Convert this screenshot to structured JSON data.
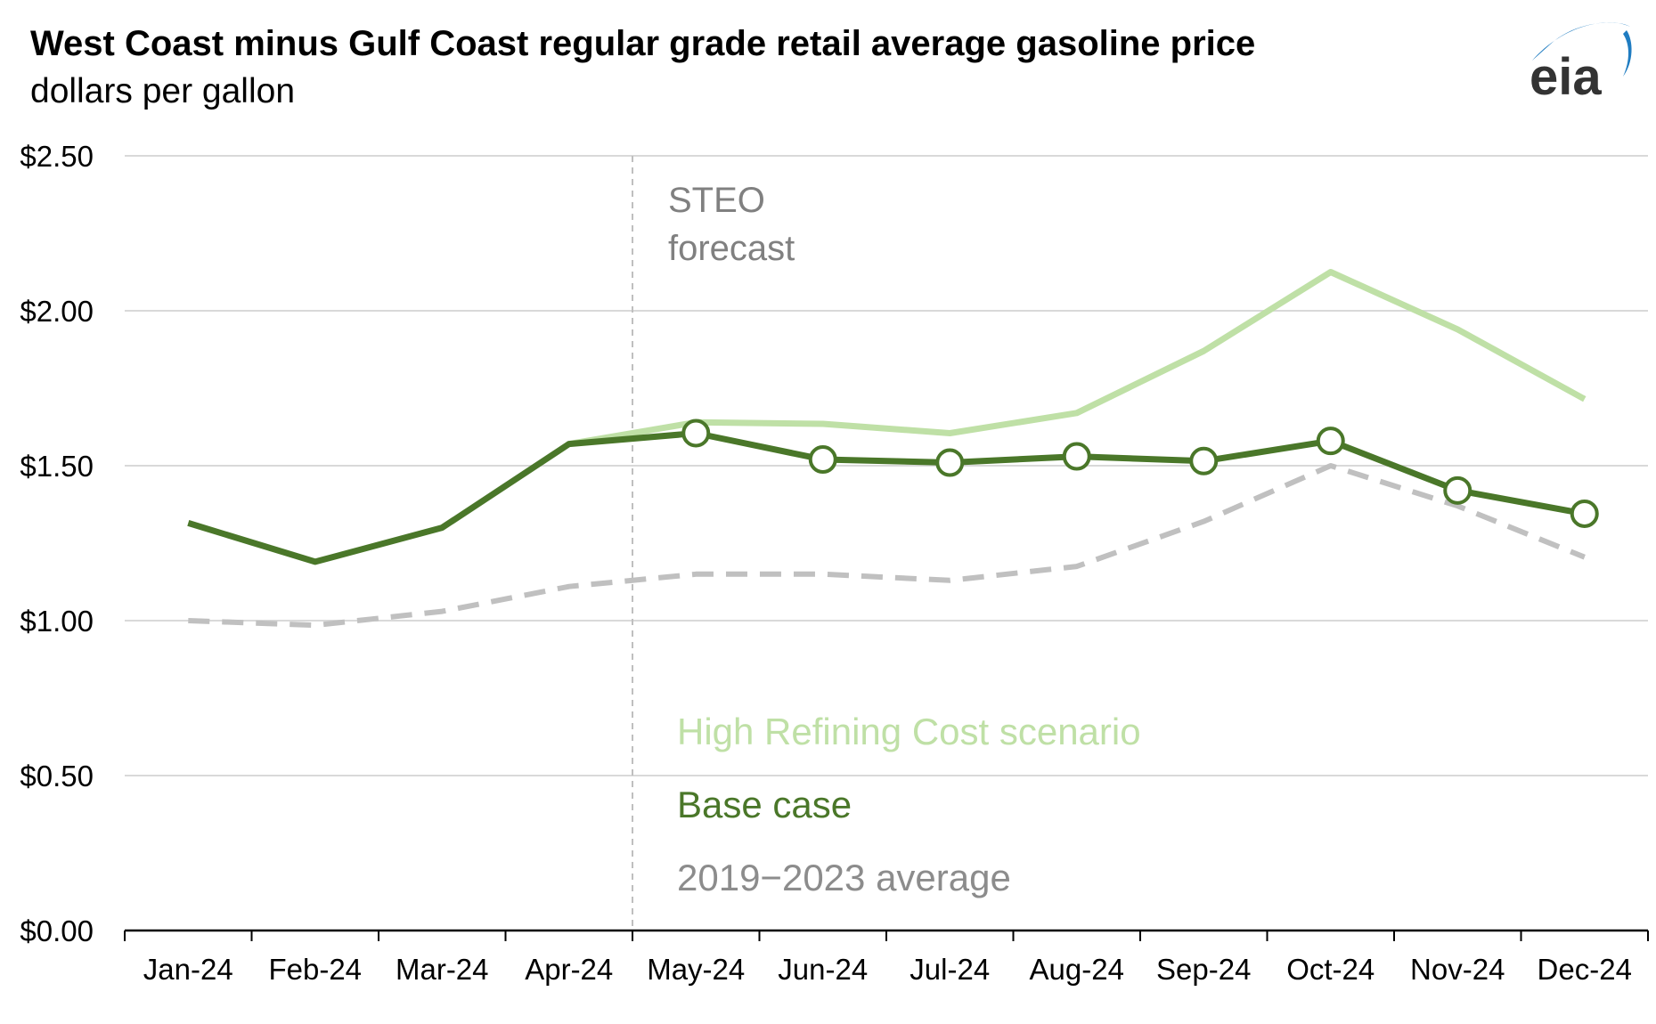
{
  "chart_data": {
    "type": "line",
    "title": "West Coast minus Gulf Coast regular grade retail average gasoline price",
    "subtitle": "dollars per gallon",
    "categories": [
      "Jan-24",
      "Feb-24",
      "Mar-24",
      "Apr-24",
      "May-24",
      "Jun-24",
      "Jul-24",
      "Aug-24",
      "Sep-24",
      "Oct-24",
      "Nov-24",
      "Dec-24"
    ],
    "ylim": [
      0,
      2.5
    ],
    "yticks": [
      0,
      0.5,
      1.0,
      1.5,
      2.0,
      2.5
    ],
    "ytick_labels": [
      "$0.00",
      "$0.50",
      "$1.00",
      "$1.50",
      "$2.00",
      "$2.50"
    ],
    "grid": true,
    "series": [
      {
        "name": "High Refining Cost scenario",
        "color": "#bfe0a6",
        "style": "solid",
        "values": [
          null,
          null,
          null,
          1.57,
          1.64,
          1.635,
          1.605,
          1.67,
          1.87,
          2.125,
          1.94,
          1.715
        ]
      },
      {
        "name": "Base case",
        "color": "#4a7729",
        "style": "solid",
        "markers_from_index": 4,
        "values": [
          1.315,
          1.19,
          1.3,
          1.57,
          1.605,
          1.52,
          1.51,
          1.53,
          1.515,
          1.58,
          1.42,
          1.345
        ]
      },
      {
        "name": "2019−2023 average",
        "color": "#c0c0c0",
        "style": "dashed",
        "values": [
          1.0,
          0.985,
          1.03,
          1.11,
          1.15,
          1.15,
          1.13,
          1.175,
          1.32,
          1.5,
          1.37,
          1.205
        ]
      }
    ],
    "annotation": {
      "lines": [
        "STEO",
        "forecast"
      ],
      "color": "#808080",
      "at_boundary_between": [
        "Apr-24",
        "May-24"
      ]
    },
    "legend": [
      {
        "label": "High Refining Cost scenario",
        "color": "#bfe0a6"
      },
      {
        "label": "Base case",
        "color": "#4a7729"
      },
      {
        "label": "2019−2023 average",
        "color": "#8c8c8c"
      }
    ],
    "legend_placement": "inside-bottom-center"
  },
  "logo": {
    "text": "eia",
    "name": "eia-logo",
    "color": "#1f7cc1"
  }
}
